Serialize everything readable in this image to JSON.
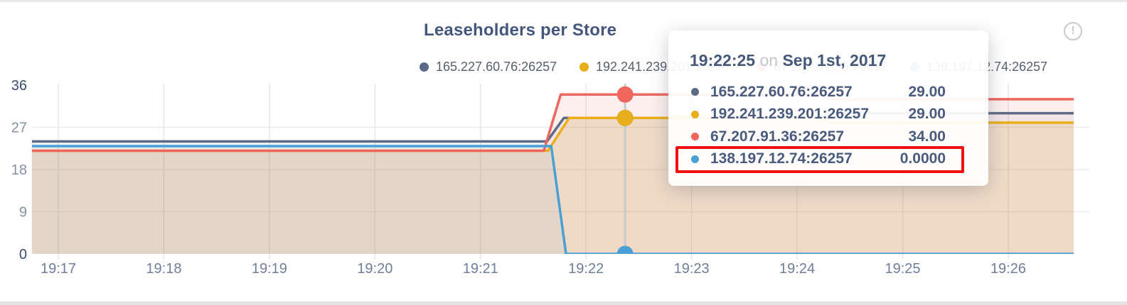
{
  "chart_data": {
    "type": "area",
    "title": "Leaseholders per Store",
    "y_max": 36,
    "y_ticks": [
      0,
      9,
      18,
      27,
      36
    ],
    "x_domain_minutes": [
      16.75,
      26.62
    ],
    "x_ticks": [
      {
        "label": "19:17",
        "minute": 17
      },
      {
        "label": "19:18",
        "minute": 18
      },
      {
        "label": "19:19",
        "minute": 19
      },
      {
        "label": "19:20",
        "minute": 20
      },
      {
        "label": "19:21",
        "minute": 21
      },
      {
        "label": "19:22",
        "minute": 22
      },
      {
        "label": "19:23",
        "minute": 23
      },
      {
        "label": "19:24",
        "minute": 24
      },
      {
        "label": "19:25",
        "minute": 25
      },
      {
        "label": "19:26",
        "minute": 26
      }
    ],
    "grid": true,
    "series": [
      {
        "name": "165.227.60.76:26257",
        "color": "#5d6a87",
        "fill_opacity": 0.07,
        "points": [
          [
            16.75,
            24
          ],
          [
            21.63,
            24
          ],
          [
            21.79,
            29
          ],
          [
            24.2,
            29
          ],
          [
            24.33,
            30
          ],
          [
            26.62,
            30
          ]
        ]
      },
      {
        "name": "192.241.239.201:26257",
        "color": "#e8ae1b",
        "fill_opacity": 0.16,
        "points": [
          [
            16.75,
            22
          ],
          [
            21.64,
            22
          ],
          [
            21.84,
            29
          ],
          [
            24.2,
            29
          ],
          [
            24.33,
            28
          ],
          [
            26.62,
            28
          ]
        ]
      },
      {
        "name": "67.207.91.36:26257",
        "color": "#f0655c",
        "fill_opacity": 0.1,
        "points": [
          [
            16.75,
            22
          ],
          [
            21.6,
            22
          ],
          [
            21.76,
            34
          ],
          [
            24.2,
            34
          ],
          [
            24.33,
            33
          ],
          [
            26.62,
            33
          ]
        ]
      },
      {
        "name": "138.197.12.74:26257",
        "color": "#4aa0d5",
        "fill_opacity": 0.08,
        "points": [
          [
            16.75,
            23
          ],
          [
            21.67,
            23
          ],
          [
            21.81,
            0
          ],
          [
            26.62,
            0
          ]
        ]
      }
    ],
    "hover": {
      "minute": 22.37,
      "values": [
        29,
        29,
        34,
        0
      ]
    }
  },
  "tooltip": {
    "time": "19:22:25",
    "conjunction": "on",
    "date": "Sep 1st, 2017",
    "highlight_color": "#ee1111",
    "rows": [
      {
        "label": "165.227.60.76:26257",
        "value": "29.00",
        "highlight": false
      },
      {
        "label": "192.241.239.201:26257",
        "value": "29.00",
        "highlight": false
      },
      {
        "label": "67.207.91.36:26257",
        "value": "34.00",
        "highlight": false
      },
      {
        "label": "138.197.12.74:26257",
        "value": "0.0000",
        "highlight": true
      }
    ]
  },
  "header": {
    "info_glyph": "!"
  }
}
